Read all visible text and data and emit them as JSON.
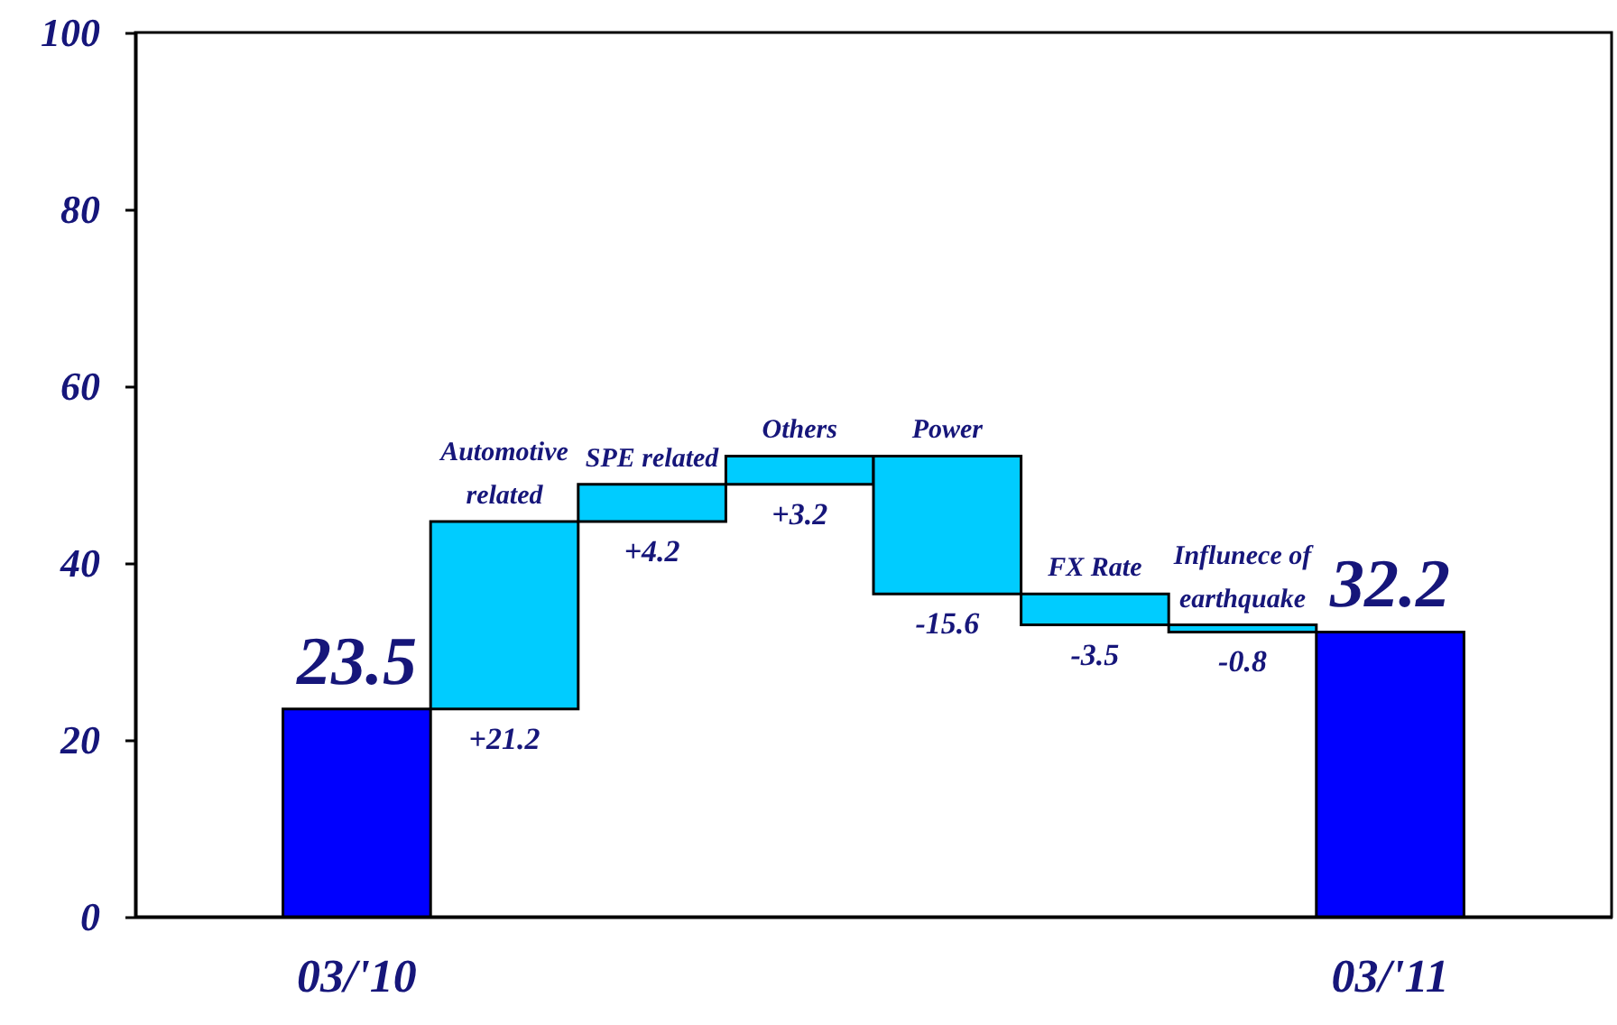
{
  "chart_data": {
    "type": "bar",
    "categories": [
      "03/'10",
      "Automotive related",
      "SPE related",
      "Others",
      "Power",
      "FX Rate",
      "Influnece of earthquake",
      "03/'11"
    ],
    "values": [
      23.5,
      21.2,
      4.2,
      3.2,
      -15.6,
      -3.5,
      -0.8,
      32.2
    ],
    "base": [
      null,
      23.5,
      44.7,
      48.9,
      52.1,
      36.5,
      33.0,
      null
    ],
    "colors": [
      "#0000ff",
      "#00ccff",
      "#00ccff",
      "#00ccff",
      "#00ccff",
      "#00ccff",
      "#00ccff",
      "#0000ff"
    ],
    "value_labels": [
      "23.5",
      "+21.2",
      "+4.2",
      "+3.2",
      "-15.6",
      "-3.5",
      "-0.8",
      "32.2"
    ],
    "ylim": [
      0,
      100
    ],
    "yticks": [
      0,
      20,
      40,
      60,
      80,
      100
    ],
    "grid": false
  }
}
